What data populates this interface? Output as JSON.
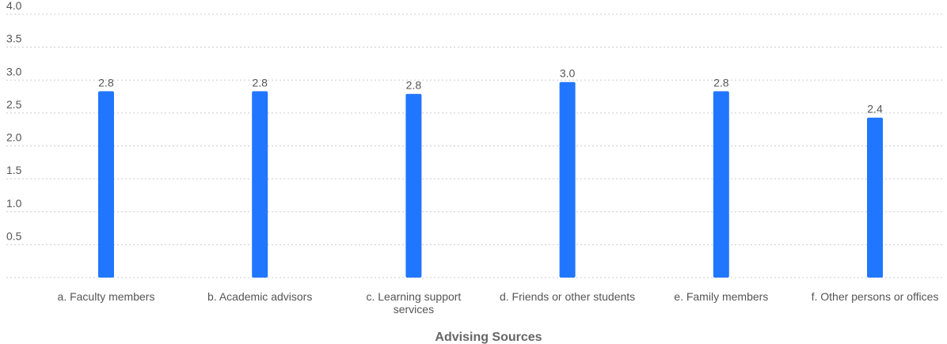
{
  "chart_data": {
    "type": "bar",
    "categories": [
      "a. Faculty members",
      "b. Academic advisors",
      "c. Learning support services",
      "d. Friends or other students",
      "e. Family members",
      "f. Other persons or offices"
    ],
    "category_lines": [
      [
        "a. Faculty members"
      ],
      [
        "b. Academic advisors"
      ],
      [
        "c. Learning support",
        "services"
      ],
      [
        "d. Friends or other students"
      ],
      [
        "e. Family members"
      ],
      [
        "f. Other persons or offices"
      ]
    ],
    "values": [
      2.83,
      2.83,
      2.79,
      2.97,
      2.83,
      2.43
    ],
    "value_labels": [
      "2.8",
      "2.8",
      "2.8",
      "3.0",
      "2.8",
      "2.4"
    ],
    "yticks": [
      "0.5",
      "1.0",
      "1.5",
      "2.0",
      "2.5",
      "3.0",
      "3.5",
      "4.0"
    ],
    "ylim": [
      0,
      4.0
    ],
    "xlabel": "Advising Sources",
    "ylabel": "",
    "title": "",
    "grid": true,
    "colors": {
      "bar": "#2176FF",
      "grid": "#cccccc",
      "text": "#555555"
    }
  }
}
